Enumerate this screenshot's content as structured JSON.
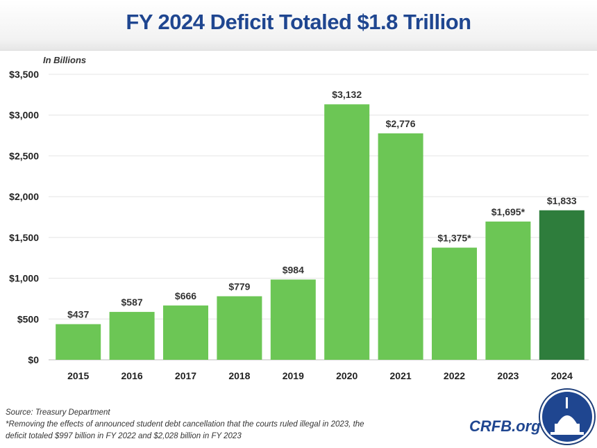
{
  "chart_data": {
    "type": "bar",
    "title": "FY 2024 Deficit Totaled $1.8 Trillion",
    "ylabel": "In Billions",
    "xlabel": "",
    "categories": [
      "2015",
      "2016",
      "2017",
      "2018",
      "2019",
      "2020",
      "2021",
      "2022",
      "2023",
      "2024"
    ],
    "values": [
      437,
      587,
      666,
      779,
      984,
      3132,
      2776,
      1375,
      1695,
      1833
    ],
    "data_labels": [
      "$437",
      "$587",
      "$666",
      "$779",
      "$984",
      "$3,132",
      "$2,776",
      "$1,375*",
      "$1,695*",
      "$1,833"
    ],
    "yticks": [
      0,
      500,
      1000,
      1500,
      2000,
      2500,
      3000,
      3500
    ],
    "ytick_labels": [
      "$0",
      "$500",
      "$1,000",
      "$1,500",
      "$2,000",
      "$2,500",
      "$3,000",
      "$3,500"
    ],
    "ylim": [
      0,
      3500
    ],
    "grid": true,
    "colors": {
      "default": "#6cc655",
      "highlight": "#2e7d3c"
    },
    "highlight_index": 9
  },
  "footer": {
    "source": "Source: Treasury Department",
    "note_line1": "*Removing the effects of announced student debt cancellation that the courts ruled illegal in 2023, the",
    "note_line2": "deficit totaled $997 billion in FY 2022 and $2,028 billion in FY 2023",
    "logo": "CRFB.org"
  }
}
